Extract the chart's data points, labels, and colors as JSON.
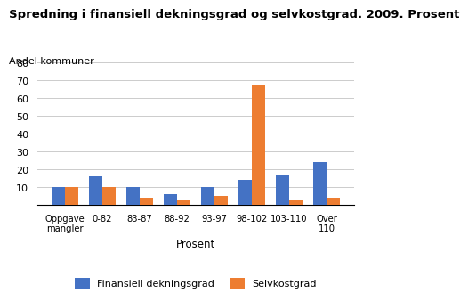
{
  "title": "Spredning i finansiell dekningsgrad og selvkostgrad. 2009. Prosent",
  "ylabel": "Andel kommuner",
  "xlabel": "Prosent",
  "categories": [
    "Oppgave\nmangler",
    "0-82",
    "83-87",
    "88-92",
    "93-97",
    "98-102",
    "103-110",
    "Over\n110"
  ],
  "finansiell": [
    10,
    16,
    10,
    6,
    10,
    14,
    17,
    24
  ],
  "selvkost": [
    10,
    10,
    4,
    2.5,
    5,
    67.5,
    2.5,
    4
  ],
  "color_finansiell": "#4472C4",
  "color_selvkost": "#ED7D31",
  "ylim": [
    0,
    80
  ],
  "yticks": [
    10,
    20,
    30,
    40,
    50,
    60,
    70,
    80
  ],
  "legend_finansiell": "Finansiell dekningsgrad",
  "legend_selvkost": "Selvkostgrad",
  "title_fontsize": 9.5,
  "background_color": "#ffffff"
}
